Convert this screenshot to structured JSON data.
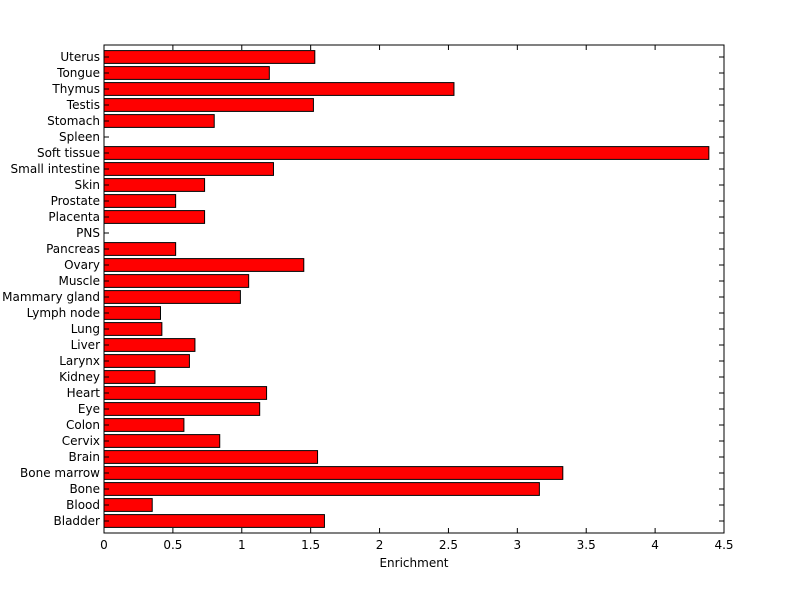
{
  "chart_data": {
    "type": "bar",
    "orientation": "horizontal",
    "title": "",
    "xlabel": "Enrichment",
    "ylabel": "",
    "xlim": [
      0,
      4.5
    ],
    "xticks": [
      0,
      0.5,
      1,
      1.5,
      2,
      2.5,
      3,
      3.5,
      4,
      4.5
    ],
    "xtick_labels": [
      "0",
      "0.5",
      "1",
      "1.5",
      "2",
      "2.5",
      "3",
      "3.5",
      "4",
      "4.5"
    ],
    "grid": false,
    "legend": "none",
    "bar_color": "#ff0000",
    "bar_edge_color": "#000000",
    "categories": [
      "Uterus",
      "Tongue",
      "Thymus",
      "Testis",
      "Stomach",
      "Spleen",
      "Soft tissue",
      "Small intestine",
      "Skin",
      "Prostate",
      "Placenta",
      "PNS",
      "Pancreas",
      "Ovary",
      "Muscle",
      "Mammary gland",
      "Lymph node",
      "Lung",
      "Liver",
      "Larynx",
      "Kidney",
      "Heart",
      "Eye",
      "Colon",
      "Cervix",
      "Brain",
      "Bone marrow",
      "Bone",
      "Blood",
      "Bladder"
    ],
    "values": [
      1.53,
      1.2,
      2.54,
      1.52,
      0.8,
      0,
      4.39,
      1.23,
      0.73,
      0.52,
      0.73,
      0,
      0.52,
      1.45,
      1.05,
      0.99,
      0.41,
      0.42,
      0.66,
      0.62,
      0.37,
      1.18,
      1.13,
      0.58,
      0.84,
      1.55,
      3.33,
      3.16,
      0.35,
      1.6
    ]
  }
}
